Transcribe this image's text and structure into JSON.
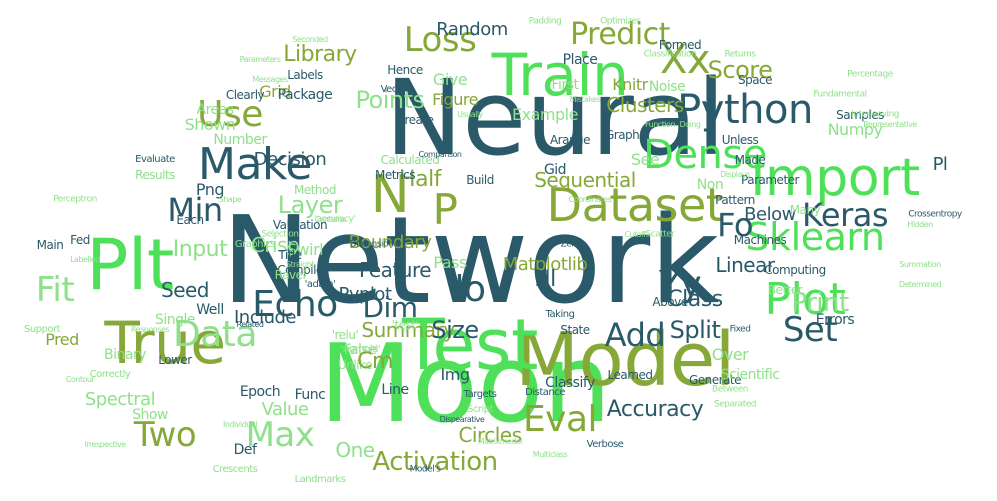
{
  "palette": {
    "bright": "#4fe05a",
    "light": "#8fe08a",
    "olive": "#86a838",
    "teal": "#2a5a6a",
    "pale": "#a8d8a0"
  },
  "words": [
    {
      "text": "Network",
      "color": "teal",
      "size": 120,
      "orient": "h"
    },
    {
      "text": "Neural",
      "color": "teal",
      "size": 104,
      "orient": "h"
    },
    {
      "text": "Moon",
      "color": "bright",
      "size": 108,
      "orient": "h"
    },
    {
      "text": "Model",
      "color": "olive",
      "size": 74,
      "orient": "h"
    },
    {
      "text": "Test",
      "color": "bright",
      "size": 70,
      "orient": "h"
    },
    {
      "text": "True",
      "color": "olive",
      "size": 58,
      "orient": "h"
    },
    {
      "text": "Plt",
      "color": "bright",
      "size": 70,
      "orient": "h"
    },
    {
      "text": "Train",
      "color": "bright",
      "size": 58,
      "orient": "h"
    },
    {
      "text": "Import",
      "color": "bright",
      "size": 52,
      "orient": "h"
    },
    {
      "text": "Dataset",
      "color": "olive",
      "size": 46,
      "orient": "h"
    },
    {
      "text": "Make",
      "color": "teal",
      "size": 44,
      "orient": "h"
    },
    {
      "text": "Sklearn",
      "color": "bright",
      "size": 38,
      "orient": "h"
    },
    {
      "text": "Plot",
      "color": "bright",
      "size": 44,
      "orient": "h"
    },
    {
      "text": "Python",
      "color": "teal",
      "size": 40,
      "orient": "h"
    },
    {
      "text": "Dense",
      "color": "bright",
      "size": 40,
      "orient": "h"
    },
    {
      "text": "Echo",
      "color": "teal",
      "size": 36,
      "orient": "h"
    },
    {
      "text": "Eval",
      "color": "olive",
      "size": 36,
      "orient": "h"
    },
    {
      "text": "Data",
      "color": "light",
      "size": 36,
      "orient": "h"
    },
    {
      "text": "Two",
      "color": "olive",
      "size": 34,
      "orient": "h"
    },
    {
      "text": "Use",
      "color": "olive",
      "size": 36,
      "orient": "h"
    },
    {
      "text": "Loss",
      "color": "olive",
      "size": 34,
      "orient": "h"
    },
    {
      "text": "Predict",
      "color": "olive",
      "size": 30,
      "orient": "h"
    },
    {
      "text": "Keras",
      "color": "teal",
      "size": 32,
      "orient": "h"
    },
    {
      "text": "Add",
      "color": "teal",
      "size": 32,
      "orient": "h"
    },
    {
      "text": "Set",
      "color": "teal",
      "size": 34,
      "orient": "h"
    },
    {
      "text": "Min",
      "color": "teal",
      "size": 32,
      "orient": "h"
    },
    {
      "text": "Max",
      "color": "light",
      "size": 34,
      "orient": "h"
    },
    {
      "text": "Fit",
      "color": "light",
      "size": 34,
      "orient": "h"
    },
    {
      "text": "Activation",
      "color": "olive",
      "size": 26,
      "orient": "h"
    },
    {
      "text": "Xx",
      "color": "olive",
      "size": 40,
      "orient": "h"
    },
    {
      "text": "Yy",
      "color": "teal",
      "size": 36,
      "orient": "h"
    },
    {
      "text": "N",
      "color": "olive",
      "size": 52,
      "orient": "h"
    },
    {
      "text": "P",
      "color": "olive",
      "size": 42,
      "orient": "h"
    },
    {
      "text": "Fo",
      "color": "teal",
      "size": 32,
      "orient": "h"
    },
    {
      "text": "lo",
      "color": "teal",
      "size": 36,
      "orient": "h"
    },
    {
      "text": "Dim",
      "color": "teal",
      "size": 28,
      "orient": "h"
    },
    {
      "text": "Print",
      "color": "light",
      "size": 26,
      "orient": "h"
    },
    {
      "text": "Score",
      "color": "olive",
      "size": 24,
      "orient": "h"
    },
    {
      "text": "Accuracy",
      "color": "teal",
      "size": 22,
      "orient": "h"
    },
    {
      "text": "Layer",
      "color": "light",
      "size": 24,
      "orient": "h"
    },
    {
      "text": "Points",
      "color": "light",
      "size": 24,
      "orient": "h"
    },
    {
      "text": "Split",
      "color": "teal",
      "size": 24,
      "orient": "h"
    },
    {
      "text": "Sequential",
      "color": "olive",
      "size": 20,
      "orient": "h"
    },
    {
      "text": "Feature",
      "color": "teal",
      "size": 20,
      "orient": "h"
    },
    {
      "text": "Summary",
      "color": "olive",
      "size": 20,
      "orient": "h"
    },
    {
      "text": "Matplotlib",
      "color": "olive",
      "size": 18,
      "orient": "h"
    },
    {
      "text": "Boundary",
      "color": "olive",
      "size": 18,
      "orient": "h"
    },
    {
      "text": "Circles",
      "color": "olive",
      "size": 20,
      "orient": "h"
    },
    {
      "text": "Clusters",
      "color": "olive",
      "size": 20,
      "orient": "h"
    },
    {
      "text": "Linear",
      "color": "teal",
      "size": 20,
      "orient": "h"
    },
    {
      "text": "Class",
      "color": "teal",
      "size": 22,
      "orient": "h"
    },
    {
      "text": "Include",
      "color": "teal",
      "size": 18,
      "orient": "h"
    },
    {
      "text": "Library",
      "color": "olive",
      "size": 22,
      "orient": "h"
    },
    {
      "text": "Random",
      "color": "teal",
      "size": 18,
      "orient": "h"
    },
    {
      "text": "Decision",
      "color": "teal",
      "size": 18,
      "orient": "h"
    },
    {
      "text": "Half",
      "color": "olive",
      "size": 22,
      "orient": "h"
    },
    {
      "text": "Size",
      "color": "teal",
      "size": 24,
      "orient": "h"
    },
    {
      "text": "Input",
      "color": "light",
      "size": 22,
      "orient": "h"
    },
    {
      "text": "Pyplot",
      "color": "teal",
      "size": 18,
      "orient": "h"
    },
    {
      "text": "Seed",
      "color": "teal",
      "size": 20,
      "orient": "h"
    },
    {
      "text": "Crisp",
      "color": "light",
      "size": 20,
      "orient": "h"
    },
    {
      "text": "Value",
      "color": "light",
      "size": 18,
      "orient": "h"
    },
    {
      "text": "One",
      "color": "light",
      "size": 20,
      "orient": "h"
    },
    {
      "text": "Spectral",
      "color": "light",
      "size": 18,
      "orient": "h"
    },
    {
      "text": "Below",
      "color": "teal",
      "size": 18,
      "orient": "h"
    },
    {
      "text": "Png",
      "color": "teal",
      "size": 16,
      "orient": "h"
    },
    {
      "text": "Swirl",
      "color": "light",
      "size": 16,
      "orient": "h"
    },
    {
      "text": "Pass",
      "color": "light",
      "size": 16,
      "orient": "h"
    },
    {
      "text": "Give",
      "color": "light",
      "size": 16,
      "orient": "h"
    },
    {
      "text": "Figure",
      "color": "olive",
      "size": 16,
      "orient": "h"
    },
    {
      "text": "Example",
      "color": "light",
      "size": 16,
      "orient": "h"
    },
    {
      "text": "Numpy",
      "color": "light",
      "size": 16,
      "orient": "h"
    },
    {
      "text": "Shown",
      "color": "light",
      "size": 16,
      "orient": "h"
    },
    {
      "text": "Areas",
      "color": "light",
      "size": 14,
      "orient": "h"
    },
    {
      "text": "Grid",
      "color": "olive",
      "size": 16,
      "orient": "h"
    },
    {
      "text": "Package",
      "color": "teal",
      "size": 14,
      "orient": "h"
    },
    {
      "text": "Number",
      "color": "light",
      "size": 14,
      "orient": "h"
    },
    {
      "text": "Metrics",
      "color": "teal",
      "size": 12,
      "orient": "h"
    },
    {
      "text": "Method",
      "color": "light",
      "size": 12,
      "orient": "h"
    },
    {
      "text": "Results",
      "color": "light",
      "size": 12,
      "orient": "h"
    },
    {
      "text": "Validation",
      "color": "teal",
      "size": 12,
      "orient": "h"
    },
    {
      "text": "Compile",
      "color": "teal",
      "size": 12,
      "orient": "h"
    },
    {
      "text": "Ravel",
      "color": "light",
      "size": 12,
      "orient": "h"
    },
    {
      "text": "Well",
      "color": "teal",
      "size": 14,
      "orient": "h"
    },
    {
      "text": "Single",
      "color": "light",
      "size": 14,
      "orient": "h"
    },
    {
      "text": "Binary",
      "color": "light",
      "size": 14,
      "orient": "h"
    },
    {
      "text": "Pred",
      "color": "olive",
      "size": 16,
      "orient": "h"
    },
    {
      "text": "Lower",
      "color": "teal",
      "size": 12,
      "orient": "h"
    },
    {
      "text": "False",
      "color": "light",
      "size": 14,
      "orient": "h"
    },
    {
      "text": "Unlike",
      "color": "light",
      "size": 12,
      "orient": "h"
    },
    {
      "text": "Epoch",
      "color": "teal",
      "size": 14,
      "orient": "h"
    },
    {
      "text": "Show",
      "color": "light",
      "size": 14,
      "orient": "h"
    },
    {
      "text": "Def",
      "color": "teal",
      "size": 14,
      "orient": "h"
    },
    {
      "text": "Func",
      "color": "teal",
      "size": 14,
      "orient": "h"
    },
    {
      "text": "Line",
      "color": "teal",
      "size": 14,
      "orient": "h"
    },
    {
      "text": "Img",
      "color": "teal",
      "size": 16,
      "orient": "h"
    },
    {
      "text": "Cm",
      "color": "olive",
      "size": 22,
      "orient": "h"
    },
    {
      "text": "Classify",
      "color": "teal",
      "size": 14,
      "orient": "h"
    },
    {
      "text": "Generate",
      "color": "teal",
      "size": 12,
      "orient": "h"
    },
    {
      "text": "Scientific",
      "color": "light",
      "size": 14,
      "orient": "h"
    },
    {
      "text": "Over",
      "color": "light",
      "size": 16,
      "orient": "h"
    },
    {
      "text": "Above",
      "color": "teal",
      "size": 12,
      "orient": "h"
    },
    {
      "text": "Errors",
      "color": "teal",
      "size": 14,
      "orient": "h"
    },
    {
      "text": "Computing",
      "color": "teal",
      "size": 12,
      "orient": "h"
    },
    {
      "text": "Machines",
      "color": "teal",
      "size": 12,
      "orient": "h"
    },
    {
      "text": "Better",
      "color": "light",
      "size": 12,
      "orient": "h"
    },
    {
      "text": "Many",
      "color": "light",
      "size": 12,
      "orient": "h"
    },
    {
      "text": "Samples",
      "color": "teal",
      "size": 12,
      "orient": "h"
    },
    {
      "text": "Unless",
      "color": "teal",
      "size": 12,
      "orient": "h"
    },
    {
      "text": "Graphs",
      "color": "teal",
      "size": 12,
      "orient": "h"
    },
    {
      "text": "Parameter",
      "color": "teal",
      "size": 12,
      "orient": "h"
    },
    {
      "text": "Non",
      "color": "light",
      "size": 14,
      "orient": "h"
    },
    {
      "text": "See",
      "color": "light",
      "size": 16,
      "orient": "h"
    },
    {
      "text": "Gid",
      "color": "teal",
      "size": 14,
      "orient": "h"
    },
    {
      "text": "Build",
      "color": "teal",
      "size": 12,
      "orient": "h"
    },
    {
      "text": "Calculated",
      "color": "light",
      "size": 12,
      "orient": "h"
    },
    {
      "text": "Arange",
      "color": "teal",
      "size": 12,
      "orient": "h"
    },
    {
      "text": "Create",
      "color": "teal",
      "size": 12,
      "orient": "h"
    },
    {
      "text": "Place",
      "color": "teal",
      "size": 14,
      "orient": "h"
    },
    {
      "text": "First",
      "color": "light",
      "size": 14,
      "orient": "h"
    },
    {
      "text": "Formed",
      "color": "teal",
      "size": 12,
      "orient": "h"
    },
    {
      "text": "Noise",
      "color": "light",
      "size": 14,
      "orient": "h"
    },
    {
      "text": "Knitr",
      "color": "olive",
      "size": 16,
      "orient": "h"
    },
    {
      "text": "Pattern",
      "color": "teal",
      "size": 12,
      "orient": "h"
    },
    {
      "text": "Space",
      "color": "teal",
      "size": 12,
      "orient": "h"
    },
    {
      "text": "Made",
      "color": "teal",
      "size": 12,
      "orient": "h"
    },
    {
      "text": "Hence",
      "color": "teal",
      "size": 12,
      "orient": "h"
    },
    {
      "text": "Labels",
      "color": "teal",
      "size": 12,
      "orient": "h"
    },
    {
      "text": "Clearly",
      "color": "teal",
      "size": 12,
      "orient": "h"
    },
    {
      "text": "Each",
      "color": "teal",
      "size": 12,
      "orient": "h"
    },
    {
      "text": "Fed",
      "color": "teal",
      "size": 12,
      "orient": "h"
    },
    {
      "text": "Main",
      "color": "teal",
      "size": 12,
      "orient": "h"
    },
    {
      "text": "Title",
      "color": "teal",
      "size": 12,
      "orient": "h"
    },
    {
      "text": "Graphics",
      "color": "light",
      "size": 10,
      "orient": "h"
    },
    {
      "text": "Taking",
      "color": "teal",
      "size": 10,
      "orient": "h"
    },
    {
      "text": "State",
      "color": "teal",
      "size": 12,
      "orient": "h"
    },
    {
      "text": "Learned",
      "color": "teal",
      "size": 12,
      "orient": "h"
    },
    {
      "text": "Targets",
      "color": "teal",
      "size": 10,
      "orient": "h"
    },
    {
      "text": "Script",
      "color": "light",
      "size": 10,
      "orient": "h"
    },
    {
      "text": "Distance",
      "color": "teal",
      "size": 10,
      "orient": "h"
    },
    {
      "text": "Verbose",
      "color": "teal",
      "size": 10,
      "orient": "h"
    },
    {
      "text": "Landmarks",
      "color": "light",
      "size": 10,
      "orient": "h"
    },
    {
      "text": "Crescents",
      "color": "light",
      "size": 10,
      "orient": "h"
    },
    {
      "text": "Correctly",
      "color": "light",
      "size": 10,
      "orient": "h"
    },
    {
      "text": "Support",
      "color": "light",
      "size": 10,
      "orient": "h"
    },
    {
      "text": "Perceptron",
      "color": "light",
      "size": 9,
      "orient": "h"
    },
    {
      "text": "Evaluate",
      "color": "teal",
      "size": 10,
      "orient": "h"
    },
    {
      "text": "Padding",
      "color": "light",
      "size": 9,
      "orient": "h"
    },
    {
      "text": "Optimizer",
      "color": "light",
      "size": 9,
      "orient": "h"
    },
    {
      "text": "Classification",
      "color": "light",
      "size": 9,
      "orient": "h"
    },
    {
      "text": "Returns",
      "color": "light",
      "size": 9,
      "orient": "h"
    },
    {
      "text": "Percentage",
      "color": "light",
      "size": 9,
      "orient": "h"
    },
    {
      "text": "Fundamental",
      "color": "light",
      "size": 9,
      "orient": "h"
    },
    {
      "text": "Interleaving",
      "color": "light",
      "size": 9,
      "orient": "h"
    },
    {
      "text": "Representative",
      "color": "light",
      "size": 8,
      "orient": "h"
    },
    {
      "text": "Crossentropy",
      "color": "teal",
      "size": 9,
      "orient": "h"
    },
    {
      "text": "Summation",
      "color": "light",
      "size": 8,
      "orient": "h"
    },
    {
      "text": "Determined",
      "color": "light",
      "size": 8,
      "orient": "h"
    },
    {
      "text": "Separated",
      "color": "light",
      "size": 9,
      "orient": "h"
    },
    {
      "text": "Between",
      "color": "light",
      "size": 9,
      "orient": "h"
    },
    {
      "text": "Dimensional",
      "color": "teal",
      "size": 9,
      "orient": "h"
    },
    {
      "text": "Matrixmodel",
      "color": "light",
      "size": 8,
      "orient": "h"
    },
    {
      "text": "Dispearative",
      "color": "teal",
      "size": 8,
      "orient": "h"
    },
    {
      "text": "Irrespective",
      "color": "light",
      "size": 8,
      "orient": "h"
    },
    {
      "text": "Model's",
      "color": "teal",
      "size": 9,
      "orient": "h"
    },
    {
      "text": "Comparison",
      "color": "teal",
      "size": 8,
      "orient": "h"
    },
    {
      "text": "Mistakes",
      "color": "light",
      "size": 8,
      "orient": "h"
    },
    {
      "text": "Function",
      "color": "light",
      "size": 8,
      "orient": "h"
    },
    {
      "text": "Usually",
      "color": "light",
      "size": 8,
      "orient": "h"
    },
    {
      "text": "Doing",
      "color": "light",
      "size": 8,
      "orient": "h"
    },
    {
      "text": "Messages",
      "color": "light",
      "size": 8,
      "orient": "h"
    },
    {
      "text": "Parameters",
      "color": "light",
      "size": 8,
      "orient": "h"
    },
    {
      "text": "Seconded",
      "color": "light",
      "size": 8,
      "orient": "h"
    },
    {
      "text": "Vector",
      "color": "teal",
      "size": 10,
      "orient": "h"
    },
    {
      "text": "Coordinates",
      "color": "light",
      "size": 8,
      "orient": "h"
    },
    {
      "text": "Displays",
      "color": "light",
      "size": 8,
      "orient": "h"
    },
    {
      "text": "Multiclass",
      "color": "light",
      "size": 8,
      "orient": "h"
    },
    {
      "text": "Hidden",
      "color": "light",
      "size": 8,
      "orient": "h"
    },
    {
      "text": "Cutoff",
      "color": "light",
      "size": 8,
      "orient": "h"
    },
    {
      "text": "Scatter",
      "color": "light",
      "size": 9,
      "orient": "h"
    },
    {
      "text": "Zero",
      "color": "teal",
      "size": 9,
      "orient": "h"
    },
    {
      "text": "Fixed",
      "color": "teal",
      "size": 9,
      "orient": "h"
    },
    {
      "text": "Contour",
      "color": "light",
      "size": 8,
      "orient": "h"
    },
    {
      "text": "Labelled",
      "color": "light",
      "size": 8,
      "orient": "h"
    },
    {
      "text": "Selection",
      "color": "light",
      "size": 9,
      "orient": "h"
    },
    {
      "text": "Straight",
      "color": "light",
      "size": 8,
      "orient": "h"
    },
    {
      "text": "Related",
      "color": "teal",
      "size": 8,
      "orient": "h"
    },
    {
      "text": "Contains",
      "color": "light",
      "size": 8,
      "orient": "h"
    },
    {
      "text": "Responses",
      "color": "light",
      "size": 8,
      "orient": "h"
    },
    {
      "text": "Individual",
      "color": "light",
      "size": 8,
      "orient": "h"
    },
    {
      "text": "Shape",
      "color": "light",
      "size": 8,
      "orient": "h"
    },
    {
      "text": "'accuracy'",
      "color": "light",
      "size": 9,
      "orient": "h"
    },
    {
      "text": "'adam'",
      "color": "teal",
      "size": 10,
      "orient": "h"
    },
    {
      "text": "'sigmoid'",
      "color": "light",
      "size": 10,
      "orient": "h"
    },
    {
      "text": "'relu'",
      "color": "light",
      "size": 12,
      "orient": "h"
    },
    {
      "text": "'test'",
      "color": "light",
      "size": 12,
      "orient": "h"
    },
    {
      "text": "Nl",
      "color": "teal",
      "size": 22,
      "orient": "h"
    },
    {
      "text": "Pl",
      "color": "teal",
      "size": 18,
      "orient": "h"
    }
  ]
}
